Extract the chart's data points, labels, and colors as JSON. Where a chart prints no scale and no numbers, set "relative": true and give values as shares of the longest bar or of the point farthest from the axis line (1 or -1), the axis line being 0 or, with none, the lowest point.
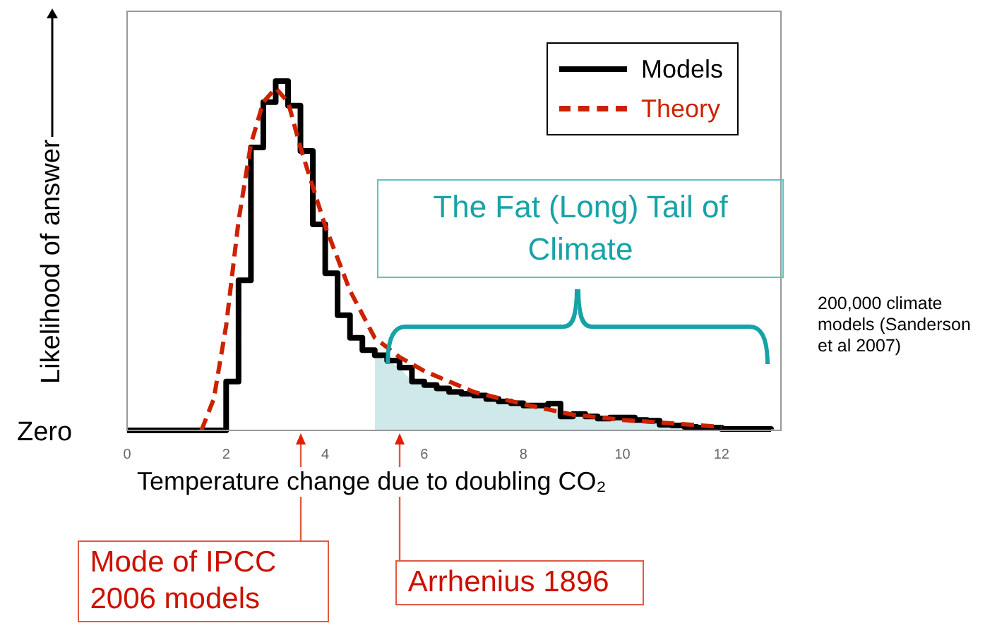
{
  "chart_data": {
    "type": "line",
    "relative": true,
    "xlabel": "Temperature change due to doubling CO₂",
    "ylabel": "Likelihood of answer",
    "xlim": [
      0,
      13.2
    ],
    "xticks": [
      0,
      2,
      4,
      6,
      8,
      10,
      12
    ],
    "grid": false,
    "legend": "top right",
    "series": [
      {
        "type": "area",
        "color": "#cfe8ea",
        "x": [
          5.0,
          5.25,
          5.5,
          5.75,
          6.0,
          6.25,
          6.5,
          6.75,
          7.0,
          7.25,
          7.5,
          7.75,
          8.0,
          8.25,
          8.5,
          8.75,
          9.0,
          9.5,
          10.0,
          10.5,
          11.0,
          11.5,
          12.0,
          12.5
        ],
        "values": [
          0.215,
          0.2,
          0.18,
          0.14,
          0.13,
          0.12,
          0.11,
          0.105,
          0.1,
          0.09,
          0.083,
          0.078,
          0.071,
          0.071,
          0.065,
          0.055,
          0.047,
          0.034,
          0.03,
          0.022,
          0.014,
          0.008,
          0.004,
          0.002
        ]
      },
      {
        "name": "Models",
        "type": "step",
        "color": "#000000",
        "x": [
          0,
          2.0,
          2.25,
          2.5,
          2.75,
          3.0,
          3.25,
          3.5,
          3.75,
          4.0,
          4.25,
          4.5,
          4.75,
          5.0,
          5.25,
          5.5,
          5.75,
          6.0,
          6.25,
          6.5,
          6.75,
          7.0,
          7.25,
          7.5,
          7.75,
          8.0,
          8.25,
          8.5,
          8.75,
          9.0,
          9.25,
          9.5,
          9.75,
          10.0,
          10.25,
          10.5,
          10.75,
          11.0,
          11.25,
          11.5,
          12.0,
          13.0
        ],
        "values": [
          0,
          0.14,
          0.43,
          0.81,
          0.94,
          1.0,
          0.93,
          0.8,
          0.59,
          0.45,
          0.33,
          0.265,
          0.23,
          0.215,
          0.2,
          0.18,
          0.14,
          0.13,
          0.12,
          0.11,
          0.105,
          0.1,
          0.09,
          0.083,
          0.078,
          0.071,
          0.071,
          0.077,
          0.04,
          0.047,
          0.04,
          0.034,
          0.037,
          0.037,
          0.03,
          0.028,
          0.016,
          0.014,
          0.01,
          0.008,
          0.004,
          0.003
        ]
      },
      {
        "name": "Theory",
        "color": "#cc2200",
        "line_style": "dashed",
        "x": [
          1.5,
          1.75,
          2.0,
          2.25,
          2.5,
          2.75,
          3.0,
          3.25,
          3.5,
          4.0,
          4.5,
          5.0,
          5.5,
          6.0,
          6.5,
          7.0,
          8.0,
          9.0,
          10.0,
          11.0,
          12.0
        ],
        "values": [
          0,
          0.09,
          0.3,
          0.6,
          0.82,
          0.94,
          0.98,
          0.94,
          0.81,
          0.585,
          0.4,
          0.265,
          0.21,
          0.17,
          0.14,
          0.11,
          0.075,
          0.045,
          0.03,
          0.02,
          0.01
        ]
      }
    ],
    "annotations": [
      "The Fat (Long) Tail of Climate",
      "Zero",
      "Mode of IPCC 2006 models",
      "Arrhenius 1896",
      "200,000 climate models (Sanderson et al 2007)"
    ]
  }
}
